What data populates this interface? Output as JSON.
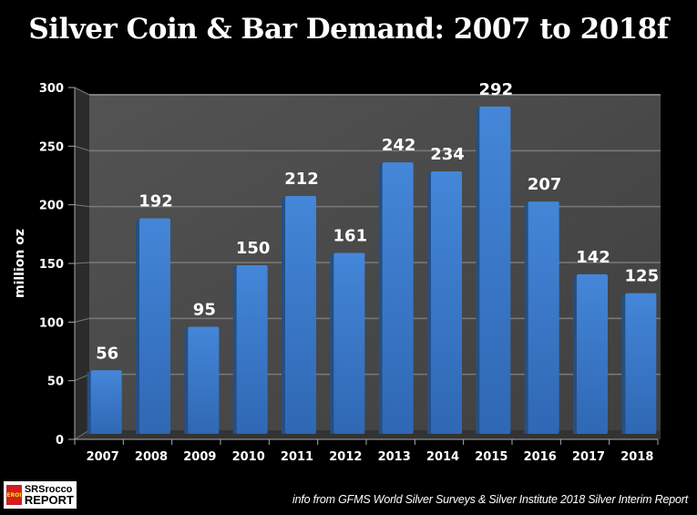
{
  "chart_data": {
    "type": "bar",
    "title": "Silver Coin & Bar Demand: 2007 to 2018f",
    "xlabel": "",
    "ylabel": "million oz",
    "ylim": [
      0,
      300
    ],
    "yticks": [
      0,
      50,
      100,
      150,
      200,
      250,
      300
    ],
    "grid": true,
    "legend": "none",
    "categories": [
      "2007",
      "2008",
      "2009",
      "2010",
      "2011",
      "2012",
      "2013",
      "2014",
      "2015",
      "2016",
      "2017",
      "2018"
    ],
    "values": [
      56,
      192,
      95,
      150,
      212,
      161,
      242,
      234,
      292,
      207,
      142,
      125
    ],
    "data_labels": [
      "56",
      "192",
      "95",
      "150",
      "212",
      "161",
      "242",
      "234",
      "292",
      "207",
      "142",
      "125"
    ],
    "colors": {
      "bar": "#3c7dd0",
      "bar_side": "#244f86",
      "plot_back": "#4a4a4a",
      "plot_side": "#2b2b2b",
      "grid": "#7a7a7a",
      "background": "#000000",
      "text": "#ffffff"
    }
  },
  "footer": {
    "logo_badge": "EROI",
    "logo_line1": "SRSrocco",
    "logo_line2": "REPORT",
    "source": "info from GFMS World Silver Surveys & Silver Institute 2018 Silver Interim Report"
  }
}
